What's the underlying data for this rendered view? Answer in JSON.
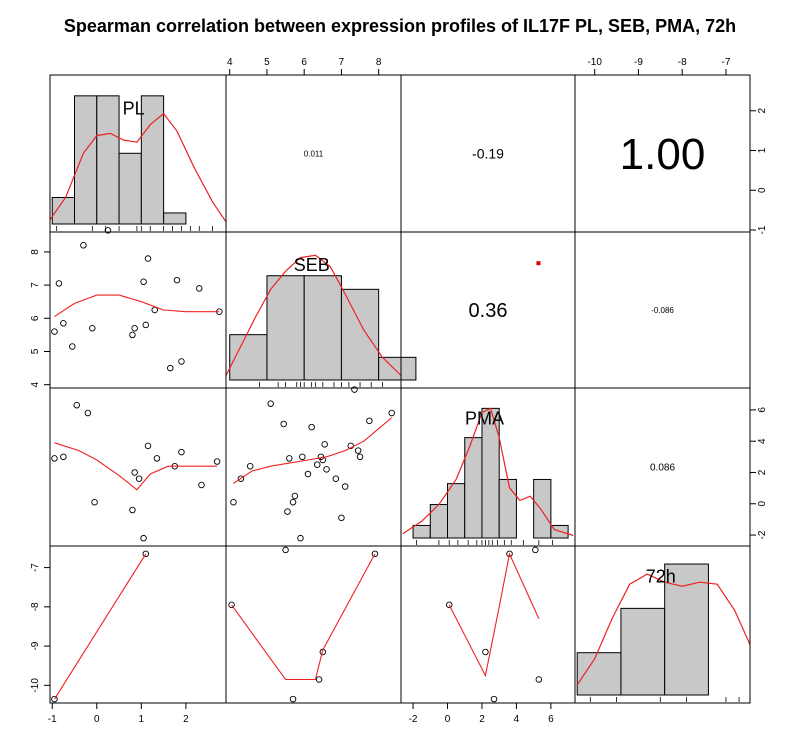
{
  "title": "Spearman correlation between expression profiles of IL17F PL, SEB, PMA, 72h",
  "chart_data": {
    "type": "scatter-matrix",
    "title": "Spearman correlation between expression profiles of IL17F PL, SEB, PMA, 72h",
    "variables": [
      "PL",
      "SEB",
      "PMA",
      "72h"
    ],
    "ranges": {
      "PL": [
        -1.05,
        2.9
      ],
      "SEB": [
        3.9,
        8.6
      ],
      "PMA": [
        -2.7,
        7.4
      ],
      "72h": [
        -10.45,
        -6.45
      ]
    },
    "axis_ticks": {
      "PL": [
        -1,
        0,
        1,
        2
      ],
      "SEB": [
        4,
        5,
        6,
        7,
        8
      ],
      "PMA": [
        -2,
        0,
        2,
        4,
        6
      ],
      "72h": [
        -10,
        -9,
        -8,
        -7
      ]
    },
    "diag_label_offsets": {
      "PL": [
        0.475,
        0.2
      ],
      "SEB": [
        0.49,
        0.2
      ],
      "PMA": [
        0.48,
        0.18
      ],
      "72h": [
        0.49,
        0.18
      ]
    },
    "correlations": [
      {
        "row": "PL",
        "col": "SEB",
        "label": "0.011",
        "font_size": 8
      },
      {
        "row": "PL",
        "col": "PMA",
        "label": "-0.19",
        "font_size": 14
      },
      {
        "row": "PL",
        "col": "72h",
        "label": "1.00",
        "font_size": 44
      },
      {
        "row": "SEB",
        "col": "PMA",
        "label": "0.36",
        "font_size": 20
      },
      {
        "row": "SEB",
        "col": "72h",
        "label": "-0.086",
        "font_size": 8
      },
      {
        "row": "PMA",
        "col": "72h",
        "label": "0.086",
        "font_size": 10
      }
    ],
    "significance_marker": {
      "row": "SEB",
      "col": "PMA",
      "color": "#dd0000"
    },
    "histograms": {
      "PL": {
        "breaks": [
          -1.0,
          -0.5,
          0.0,
          0.5,
          1.0,
          1.5,
          2.0,
          2.5
        ],
        "heights": [
          0.12,
          0.58,
          0.58,
          0.32,
          0.58,
          0.05,
          0.0
        ],
        "density": [
          [
            -1.05,
            0.02
          ],
          [
            -0.7,
            0.12
          ],
          [
            -0.3,
            0.32
          ],
          [
            0.0,
            0.4
          ],
          [
            0.3,
            0.41
          ],
          [
            0.6,
            0.38
          ],
          [
            0.9,
            0.37
          ],
          [
            1.2,
            0.45
          ],
          [
            1.5,
            0.5
          ],
          [
            1.8,
            0.42
          ],
          [
            2.2,
            0.25
          ],
          [
            2.6,
            0.1
          ],
          [
            2.9,
            0.01
          ]
        ],
        "rug": [
          -0.9,
          -0.1,
          0.2,
          0.5,
          0.9,
          1.0,
          1.2,
          1.5,
          1.7,
          1.9,
          2.1,
          2.3,
          2.6
        ]
      },
      "SEB": {
        "breaks": [
          4,
          5,
          6,
          7,
          8,
          9
        ],
        "heights": [
          0.2,
          0.46,
          0.46,
          0.4,
          0.1
        ],
        "density": [
          [
            3.9,
            0.02
          ],
          [
            4.3,
            0.15
          ],
          [
            4.7,
            0.28
          ],
          [
            5.1,
            0.4
          ],
          [
            5.5,
            0.48
          ],
          [
            5.9,
            0.54
          ],
          [
            6.3,
            0.55
          ],
          [
            6.7,
            0.5
          ],
          [
            7.1,
            0.38
          ],
          [
            7.6,
            0.22
          ],
          [
            8.1,
            0.1
          ],
          [
            8.6,
            0.02
          ]
        ],
        "rug": [
          4.8,
          5.3,
          5.5,
          5.8,
          5.9,
          6.0,
          6.2,
          6.3,
          6.5,
          6.8,
          7.0,
          7.2,
          7.5,
          7.8,
          8.1
        ]
      },
      "PMA": {
        "breaks": [
          -2,
          -1,
          0,
          1,
          2,
          3,
          4,
          5,
          6,
          7
        ],
        "heights": [
          0.015,
          0.04,
          0.065,
          0.12,
          0.155,
          0.07,
          0.0,
          0.07,
          0.015
        ],
        "density": [
          [
            -2.6,
            0.005
          ],
          [
            -1.5,
            0.02
          ],
          [
            -0.5,
            0.04
          ],
          [
            0.5,
            0.07
          ],
          [
            1.3,
            0.11
          ],
          [
            2.0,
            0.15
          ],
          [
            2.5,
            0.155
          ],
          [
            3.0,
            0.12
          ],
          [
            3.6,
            0.06
          ],
          [
            4.2,
            0.045
          ],
          [
            4.8,
            0.05
          ],
          [
            5.4,
            0.035
          ],
          [
            6.2,
            0.01
          ],
          [
            7.3,
            0.003
          ]
        ],
        "rug": [
          -1.8,
          -0.5,
          0.1,
          0.6,
          1.2,
          1.7,
          2.0,
          2.2,
          2.4,
          2.6,
          2.9,
          3.3,
          3.7,
          4.4,
          5.3,
          6.1
        ]
      },
      "72h": {
        "breaks": [
          -10.4,
          -9.4,
          -8.4,
          -7.4,
          -6.4
        ],
        "heights": [
          0.21,
          0.43,
          0.65,
          0.0
        ],
        "density": [
          [
            -10.4,
            0.05
          ],
          [
            -10.0,
            0.18
          ],
          [
            -9.6,
            0.38
          ],
          [
            -9.2,
            0.55
          ],
          [
            -8.8,
            0.6
          ],
          [
            -8.4,
            0.56
          ],
          [
            -8.0,
            0.54
          ],
          [
            -7.6,
            0.56
          ],
          [
            -7.2,
            0.55
          ],
          [
            -6.8,
            0.42
          ],
          [
            -6.45,
            0.25
          ]
        ],
        "rug": [
          -10.1,
          -9.5,
          -8.5,
          -7.9,
          -7.0,
          -6.7
        ]
      }
    },
    "hist_max": {
      "PL": 0.62,
      "SEB": 0.6,
      "PMA": 0.165,
      "72h": 0.68
    },
    "scatter": [
      {
        "row": "SEB",
        "col": "PL",
        "points": [
          [
            -0.95,
            5.6
          ],
          [
            -0.85,
            7.05
          ],
          [
            -0.75,
            5.85
          ],
          [
            -0.55,
            5.15
          ],
          [
            -0.3,
            8.2
          ],
          [
            -0.1,
            5.7
          ],
          [
            0.25,
            8.65
          ],
          [
            0.85,
            5.7
          ],
          [
            0.8,
            5.5
          ],
          [
            1.05,
            7.1
          ],
          [
            1.1,
            5.8
          ],
          [
            1.15,
            7.8
          ],
          [
            1.3,
            6.25
          ],
          [
            1.65,
            4.5
          ],
          [
            1.8,
            7.15
          ],
          [
            1.9,
            4.7
          ],
          [
            2.3,
            6.9
          ],
          [
            2.75,
            6.2
          ]
        ],
        "smooth": [
          [
            -0.95,
            6.05
          ],
          [
            -0.5,
            6.45
          ],
          [
            0.0,
            6.7
          ],
          [
            0.5,
            6.7
          ],
          [
            1.0,
            6.5
          ],
          [
            1.5,
            6.25
          ],
          [
            2.0,
            6.2
          ],
          [
            2.75,
            6.2
          ]
        ]
      },
      {
        "row": "PMA",
        "col": "PL",
        "points": [
          [
            -0.95,
            2.9
          ],
          [
            -0.75,
            3.0
          ],
          [
            -0.45,
            6.3
          ],
          [
            -0.2,
            5.8
          ],
          [
            -0.05,
            0.1
          ],
          [
            0.8,
            -0.4
          ],
          [
            0.85,
            2.0
          ],
          [
            0.95,
            1.6
          ],
          [
            1.05,
            -2.2
          ],
          [
            1.15,
            3.7
          ],
          [
            1.35,
            2.9
          ],
          [
            1.75,
            2.4
          ],
          [
            1.9,
            3.3
          ],
          [
            2.35,
            1.2
          ],
          [
            2.7,
            2.7
          ]
        ],
        "smooth": [
          [
            -0.95,
            3.9
          ],
          [
            -0.4,
            3.4
          ],
          [
            0.0,
            2.8
          ],
          [
            0.5,
            1.8
          ],
          [
            0.9,
            0.9
          ],
          [
            1.2,
            1.9
          ],
          [
            1.6,
            2.4
          ],
          [
            2.0,
            2.4
          ],
          [
            2.7,
            2.4
          ]
        ]
      },
      {
        "row": "PMA",
        "col": "SEB",
        "points": [
          [
            4.1,
            0.1
          ],
          [
            4.3,
            1.6
          ],
          [
            4.55,
            2.4
          ],
          [
            5.1,
            6.4
          ],
          [
            5.45,
            5.1
          ],
          [
            5.55,
            -0.5
          ],
          [
            5.6,
            2.9
          ],
          [
            5.7,
            0.1
          ],
          [
            5.75,
            0.5
          ],
          [
            5.9,
            -2.2
          ],
          [
            5.95,
            3.0
          ],
          [
            6.1,
            1.9
          ],
          [
            6.2,
            4.9
          ],
          [
            6.35,
            2.5
          ],
          [
            6.45,
            3.0
          ],
          [
            6.5,
            2.8
          ],
          [
            6.55,
            3.8
          ],
          [
            6.6,
            2.2
          ],
          [
            6.85,
            1.6
          ],
          [
            7.0,
            -0.9
          ],
          [
            7.1,
            1.1
          ],
          [
            7.25,
            3.7
          ],
          [
            7.35,
            7.3
          ],
          [
            7.45,
            3.4
          ],
          [
            7.5,
            3.0
          ],
          [
            7.75,
            5.3
          ],
          [
            8.35,
            5.8
          ]
        ],
        "smooth": [
          [
            4.1,
            1.3
          ],
          [
            4.6,
            2.1
          ],
          [
            5.1,
            2.4
          ],
          [
            5.6,
            2.6
          ],
          [
            6.1,
            2.8
          ],
          [
            6.6,
            3.0
          ],
          [
            7.1,
            3.4
          ],
          [
            7.6,
            4.0
          ],
          [
            8.35,
            5.5
          ]
        ]
      },
      {
        "row": "72h",
        "col": "PL",
        "points": [
          [
            -0.95,
            -10.35
          ],
          [
            1.1,
            -6.65
          ]
        ],
        "smooth": [
          [
            -0.95,
            -10.35
          ],
          [
            1.1,
            -6.65
          ]
        ]
      },
      {
        "row": "72h",
        "col": "SEB",
        "points": [
          [
            4.05,
            -7.95
          ],
          [
            5.5,
            -6.55
          ],
          [
            5.7,
            -10.35
          ],
          [
            6.4,
            -9.85
          ],
          [
            6.5,
            -9.15
          ],
          [
            7.9,
            -6.65
          ]
        ],
        "smooth": [
          [
            4.05,
            -7.95
          ],
          [
            5.0,
            -9.2
          ],
          [
            5.5,
            -9.85
          ],
          [
            6.3,
            -9.85
          ],
          [
            6.5,
            -9.1
          ],
          [
            7.9,
            -6.65
          ]
        ]
      },
      {
        "row": "72h",
        "col": "PMA",
        "points": [
          [
            0.1,
            -7.95
          ],
          [
            2.2,
            -9.15
          ],
          [
            2.7,
            -10.35
          ],
          [
            3.6,
            -6.65
          ],
          [
            5.1,
            -6.55
          ],
          [
            5.3,
            -9.85
          ]
        ],
        "smooth": [
          [
            0.1,
            -7.95
          ],
          [
            2.2,
            -9.75
          ],
          [
            3.0,
            -8.0
          ],
          [
            3.6,
            -6.65
          ],
          [
            5.3,
            -8.3
          ]
        ]
      }
    ],
    "axes_on": {
      "top": [
        "SEB",
        "72h"
      ],
      "bottom": [
        "PL",
        "PMA"
      ],
      "left": [
        "SEB",
        "72h"
      ],
      "right": [
        "PL",
        "PMA"
      ]
    },
    "colors": {
      "hist_fill": "#c8c8c8",
      "smooth": "#ee2222",
      "frame": "#000000"
    }
  }
}
